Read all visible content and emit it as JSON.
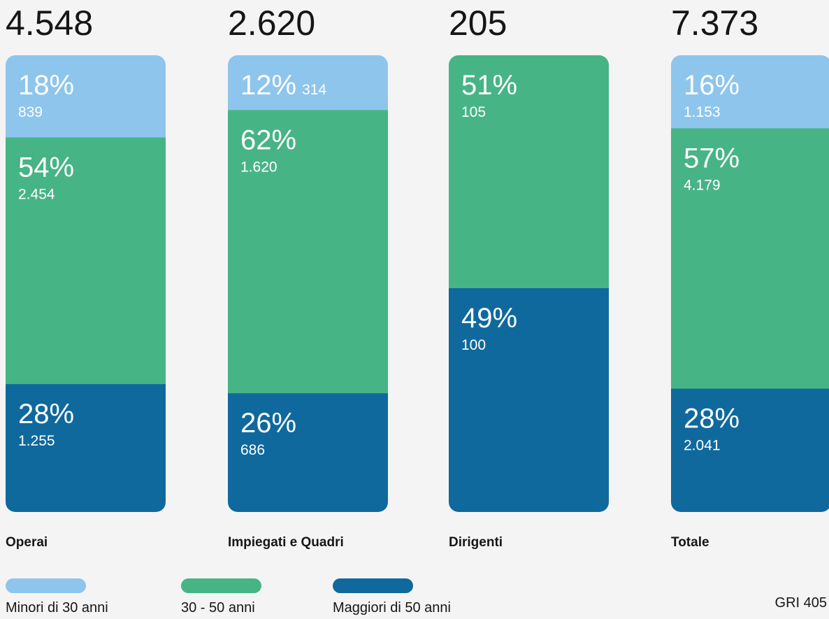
{
  "chart_data": {
    "type": "stacked_bar_100",
    "categories": [
      "Operai",
      "Impiegati e Quadri",
      "Dirigenti",
      "Totale"
    ],
    "totals": [
      4548,
      2620,
      205,
      7373
    ],
    "total_labels": [
      "4.548",
      "2.620",
      "205",
      "7.373"
    ],
    "ylim": [
      0,
      100
    ],
    "series": [
      {
        "name": "Minori di 30 anni",
        "color": "#8ec5ec",
        "values": [
          18,
          12,
          null,
          16
        ],
        "value_labels": [
          "18%",
          "12%",
          null,
          "16%"
        ],
        "counts": [
          839,
          314,
          null,
          1153
        ],
        "count_labels": [
          "839",
          "314",
          null,
          "1.153"
        ]
      },
      {
        "name": "30 - 50 anni",
        "color": "#47b486",
        "values": [
          54,
          62,
          51,
          57
        ],
        "value_labels": [
          "54%",
          "62%",
          "51%",
          "57%"
        ],
        "counts": [
          2454,
          1620,
          105,
          4179
        ],
        "count_labels": [
          "2.454",
          "1.620",
          "105",
          "4.179"
        ]
      },
      {
        "name": "Maggiori di 50 anni",
        "color": "#0f699d",
        "values": [
          28,
          26,
          49,
          28
        ],
        "value_labels": [
          "28%",
          "26%",
          "49%",
          "28%"
        ],
        "counts": [
          1255,
          686,
          100,
          2041
        ],
        "count_labels": [
          "1.255",
          "686",
          "100",
          "2.041"
        ]
      }
    ],
    "source": "GRI 405"
  }
}
